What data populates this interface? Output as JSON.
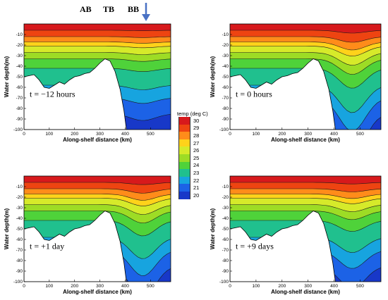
{
  "sites": [
    "AB",
    "TB",
    "BB"
  ],
  "arrow_icon": "down-arrow-icon",
  "legend": {
    "title": "temp (deg C)",
    "levels": [
      30,
      29,
      28,
      27,
      26,
      25,
      24,
      23,
      22,
      21,
      20
    ],
    "colors": [
      "#d7191c",
      "#ee4411",
      "#ff8c1a",
      "#ffd21a",
      "#d6ea2a",
      "#9ddc25",
      "#4fd23a",
      "#20c08e",
      "#17a4df",
      "#1c62e6",
      "#1838c8"
    ]
  },
  "chart_data": [
    {
      "type": "heatmap",
      "label": "t = −12 hours",
      "xlabel": "Along-shelf distance (km)",
      "ylabel": "Water depth(m)",
      "xlim": [
        0,
        580
      ],
      "ylim": [
        -100,
        0
      ],
      "xticks": [
        0,
        100,
        200,
        300,
        400,
        500
      ],
      "yticks": [
        -10,
        -20,
        -30,
        -40,
        -50,
        -60,
        -70,
        -80,
        -90,
        -100
      ],
      "bathymetry": [
        [
          0,
          -50
        ],
        [
          20,
          -49
        ],
        [
          40,
          -48
        ],
        [
          60,
          -53
        ],
        [
          80,
          -60
        ],
        [
          100,
          -61
        ],
        [
          120,
          -58
        ],
        [
          140,
          -55
        ],
        [
          160,
          -57
        ],
        [
          180,
          -53
        ],
        [
          200,
          -50
        ],
        [
          220,
          -49
        ],
        [
          240,
          -47
        ],
        [
          260,
          -46
        ],
        [
          280,
          -42
        ],
        [
          300,
          -37
        ],
        [
          320,
          -33
        ],
        [
          340,
          -35
        ],
        [
          360,
          -45
        ],
        [
          380,
          -62
        ],
        [
          395,
          -82
        ],
        [
          405,
          -100
        ]
      ],
      "isotherm_depths": [
        [
          30,
          -6
        ],
        [
          29,
          -12
        ],
        [
          28,
          -17
        ],
        [
          27,
          -21
        ],
        [
          26,
          -27
        ],
        [
          25,
          -33
        ],
        [
          24,
          -42
        ],
        [
          23,
          -58
        ],
        [
          22,
          -70
        ],
        [
          21,
          -85
        ]
      ],
      "contour_labels": []
    },
    {
      "type": "heatmap",
      "label": "t = 0 hours",
      "xlabel": "Along-shelf distance (km)",
      "ylabel": "Water depth(m)",
      "xlim": [
        0,
        580
      ],
      "ylim": [
        -100,
        0
      ],
      "xticks": [
        0,
        100,
        200,
        300,
        400,
        500
      ],
      "yticks": [
        -10,
        -20,
        -30,
        -40,
        -50,
        -60,
        -70,
        -80,
        -90,
        -100
      ],
      "bathymetry": [
        [
          0,
          -50
        ],
        [
          20,
          -49
        ],
        [
          40,
          -48
        ],
        [
          60,
          -53
        ],
        [
          80,
          -60
        ],
        [
          100,
          -61
        ],
        [
          120,
          -58
        ],
        [
          140,
          -55
        ],
        [
          160,
          -57
        ],
        [
          180,
          -53
        ],
        [
          200,
          -50
        ],
        [
          220,
          -49
        ],
        [
          240,
          -47
        ],
        [
          260,
          -46
        ],
        [
          280,
          -42
        ],
        [
          300,
          -37
        ],
        [
          320,
          -33
        ],
        [
          340,
          -35
        ],
        [
          360,
          -45
        ],
        [
          380,
          -62
        ],
        [
          395,
          -82
        ],
        [
          405,
          -100
        ]
      ],
      "isotherm_depths": [
        [
          30,
          -6
        ],
        [
          29,
          -12
        ],
        [
          28,
          -17
        ],
        [
          27,
          -21
        ],
        [
          26,
          -27
        ],
        [
          25,
          -33
        ],
        [
          24,
          -42
        ],
        [
          23,
          -58
        ],
        [
          22,
          -70
        ],
        [
          21,
          -85
        ]
      ],
      "contour_labels": []
    },
    {
      "type": "heatmap",
      "label": "t = +1 day",
      "xlabel": "Along-shelf distance (km)",
      "ylabel": "Water depth(m)",
      "xlim": [
        0,
        580
      ],
      "ylim": [
        -100,
        0
      ],
      "xticks": [
        0,
        100,
        200,
        300,
        400,
        500
      ],
      "yticks": [
        -10,
        -20,
        -30,
        -40,
        -50,
        -60,
        -70,
        -80,
        -90,
        -100
      ],
      "bathymetry": [
        [
          0,
          -50
        ],
        [
          20,
          -49
        ],
        [
          40,
          -48
        ],
        [
          60,
          -53
        ],
        [
          80,
          -60
        ],
        [
          100,
          -61
        ],
        [
          120,
          -58
        ],
        [
          140,
          -55
        ],
        [
          160,
          -57
        ],
        [
          180,
          -53
        ],
        [
          200,
          -50
        ],
        [
          220,
          -49
        ],
        [
          240,
          -47
        ],
        [
          260,
          -46
        ],
        [
          280,
          -42
        ],
        [
          300,
          -37
        ],
        [
          320,
          -33
        ],
        [
          340,
          -35
        ],
        [
          360,
          -45
        ],
        [
          380,
          -62
        ],
        [
          395,
          -82
        ],
        [
          405,
          -100
        ]
      ],
      "isotherm_depths": [
        [
          30,
          -6
        ],
        [
          29,
          -12
        ],
        [
          28,
          -17
        ],
        [
          27,
          -21
        ],
        [
          26,
          -27
        ],
        [
          25,
          -33
        ],
        [
          24,
          -42
        ],
        [
          23,
          -58
        ],
        [
          22,
          -70
        ],
        [
          21,
          -85
        ]
      ],
      "contour_labels": []
    },
    {
      "type": "heatmap",
      "label": "t = +9 days",
      "xlabel": "Along-shelf distance (km)",
      "ylabel": "Water depth(m)",
      "xlim": [
        0,
        580
      ],
      "ylim": [
        -100,
        0
      ],
      "xticks": [
        0,
        100,
        200,
        300,
        400,
        500
      ],
      "yticks": [
        -10,
        -20,
        -30,
        -40,
        -50,
        -60,
        -70,
        -80,
        -90,
        -100
      ],
      "bathymetry": [
        [
          0,
          -50
        ],
        [
          20,
          -49
        ],
        [
          40,
          -48
        ],
        [
          60,
          -53
        ],
        [
          80,
          -60
        ],
        [
          100,
          -61
        ],
        [
          120,
          -58
        ],
        [
          140,
          -55
        ],
        [
          160,
          -57
        ],
        [
          180,
          -53
        ],
        [
          200,
          -50
        ],
        [
          220,
          -49
        ],
        [
          240,
          -47
        ],
        [
          260,
          -46
        ],
        [
          280,
          -42
        ],
        [
          300,
          -37
        ],
        [
          320,
          -33
        ],
        [
          340,
          -35
        ],
        [
          360,
          -45
        ],
        [
          380,
          -62
        ],
        [
          395,
          -82
        ],
        [
          405,
          -100
        ]
      ],
      "isotherm_depths": [
        [
          30,
          -6
        ],
        [
          29,
          -12
        ],
        [
          28,
          -17
        ],
        [
          27,
          -21
        ],
        [
          26,
          -27
        ],
        [
          25,
          -33
        ],
        [
          24,
          -42
        ],
        [
          23,
          -58
        ],
        [
          22,
          -70
        ],
        [
          21,
          -85
        ]
      ],
      "contour_labels": []
    }
  ]
}
